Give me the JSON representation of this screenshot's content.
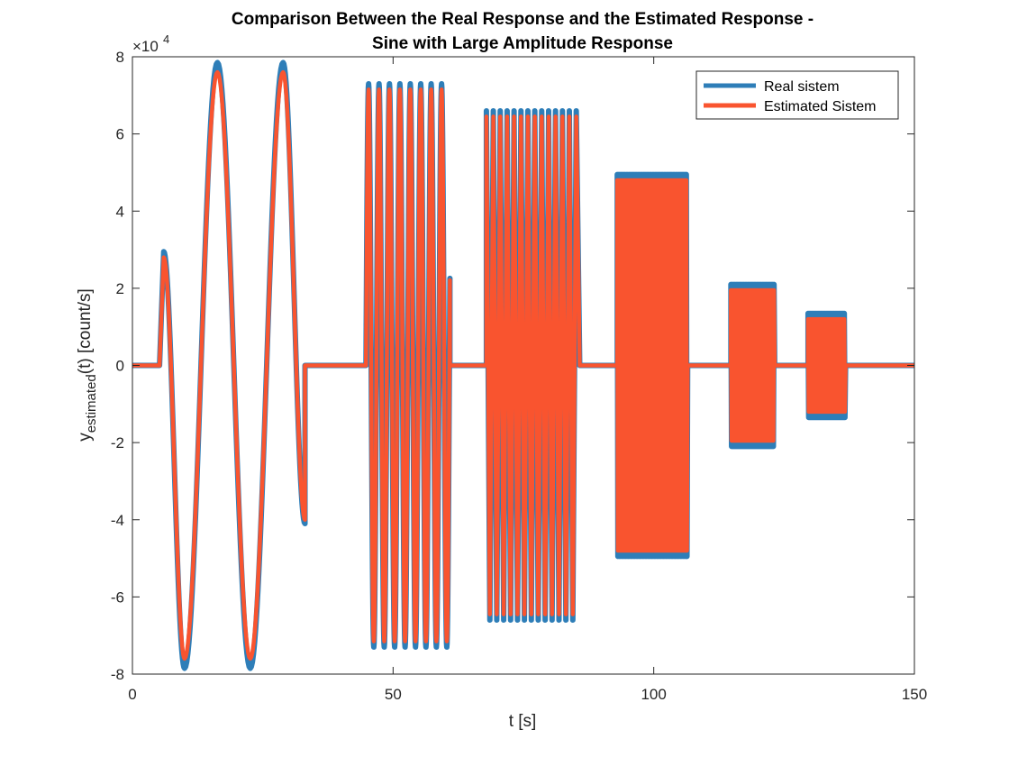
{
  "chart_data": {
    "type": "line",
    "title_line1": "Comparison Between the Real Response and the Estimated Response -",
    "title_line2": "Sine with Large Amplitude Response",
    "xlabel": "t [s]",
    "ylabel_main": "y",
    "ylabel_sub": "estimated",
    "ylabel_rest": "(t) [count/s]",
    "exponent_label": "×10",
    "exponent_power": "4",
    "xlim": [
      0,
      150
    ],
    "ylim": [
      -80000,
      80000
    ],
    "x_ticks": [
      0,
      50,
      100,
      150
    ],
    "x_tick_labels": [
      "0",
      "50",
      "100",
      "150"
    ],
    "y_ticks": [
      -80000,
      -60000,
      -40000,
      -20000,
      0,
      20000,
      40000,
      60000,
      80000
    ],
    "y_tick_labels": [
      "-8",
      "-6",
      "-4",
      "-2",
      "0",
      "2",
      "4",
      "6",
      "8"
    ],
    "legend_position": "top-right",
    "series": [
      {
        "name": "Real sistem",
        "color": "#2E7EB8",
        "segments": [
          {
            "type": "zero",
            "x": [
              0,
              5.2
            ]
          },
          {
            "type": "sine",
            "x": [
              5.2,
              33.1
            ],
            "period": 12.6,
            "amplitude": 78500,
            "peaks": [
              [
                6.0,
                29500
              ],
              [
                10.0,
                -78500
              ],
              [
                16.3,
                78500
              ],
              [
                22.6,
                -78500
              ],
              [
                28.9,
                78500
              ],
              [
                33.1,
                -41000
              ]
            ]
          },
          {
            "type": "zero",
            "x": [
              33.1,
              44.8
            ]
          },
          {
            "type": "sine",
            "x": [
              44.8,
              60.9
            ],
            "period": 2.0,
            "amplitude": 73000
          },
          {
            "type": "zero",
            "x": [
              60.9,
              67.9
            ]
          },
          {
            "type": "band",
            "x": [
              67.9,
              85.8
            ],
            "upper": 66000,
            "lower": -66000,
            "period": 1.33
          },
          {
            "type": "zero",
            "x": [
              85.8,
              93.0
            ]
          },
          {
            "type": "band",
            "x": [
              93.0,
              106.5
            ],
            "upper": 49500,
            "lower": -49500
          },
          {
            "type": "zero",
            "x": [
              106.5,
              114.8
            ]
          },
          {
            "type": "band",
            "x": [
              114.8,
              123.2
            ],
            "upper": 21000,
            "lower": -21000
          },
          {
            "type": "zero",
            "x": [
              123.2,
              129.6
            ]
          },
          {
            "type": "band",
            "x": [
              129.6,
              136.8
            ],
            "upper": 13500,
            "lower": -13500
          },
          {
            "type": "zero",
            "x": [
              136.8,
              150
            ]
          }
        ]
      },
      {
        "name": "Estimated Sistem",
        "color": "#F9542F",
        "segments": [
          {
            "type": "zero",
            "x": [
              0,
              5.2
            ]
          },
          {
            "type": "sine",
            "x": [
              5.2,
              33.1
            ],
            "period": 12.6,
            "amplitude": 76000,
            "peaks": [
              [
                6.0,
                28000
              ],
              [
                10.0,
                -76000
              ],
              [
                16.3,
                76000
              ],
              [
                22.6,
                -76000
              ],
              [
                28.9,
                76000
              ],
              [
                33.1,
                -40000
              ]
            ]
          },
          {
            "type": "zero",
            "x": [
              33.1,
              44.8
            ]
          },
          {
            "type": "sine",
            "x": [
              44.8,
              60.9
            ],
            "period": 2.0,
            "amplitude": 71500
          },
          {
            "type": "zero",
            "x": [
              60.9,
              67.9
            ]
          },
          {
            "type": "band",
            "x": [
              67.9,
              85.8
            ],
            "upper": 64500,
            "lower": -64500,
            "period": 1.33
          },
          {
            "type": "zero",
            "x": [
              85.8,
              93.0
            ]
          },
          {
            "type": "band",
            "x": [
              93.0,
              106.5
            ],
            "upper": 48000,
            "lower": -48000
          },
          {
            "type": "zero",
            "x": [
              106.5,
              114.8
            ]
          },
          {
            "type": "band",
            "x": [
              114.8,
              123.2
            ],
            "upper": 19500,
            "lower": -19500
          },
          {
            "type": "zero",
            "x": [
              123.2,
              129.6
            ]
          },
          {
            "type": "band",
            "x": [
              129.6,
              136.8
            ],
            "upper": 12000,
            "lower": -12000
          },
          {
            "type": "zero",
            "x": [
              136.8,
              150
            ]
          }
        ]
      }
    ]
  }
}
